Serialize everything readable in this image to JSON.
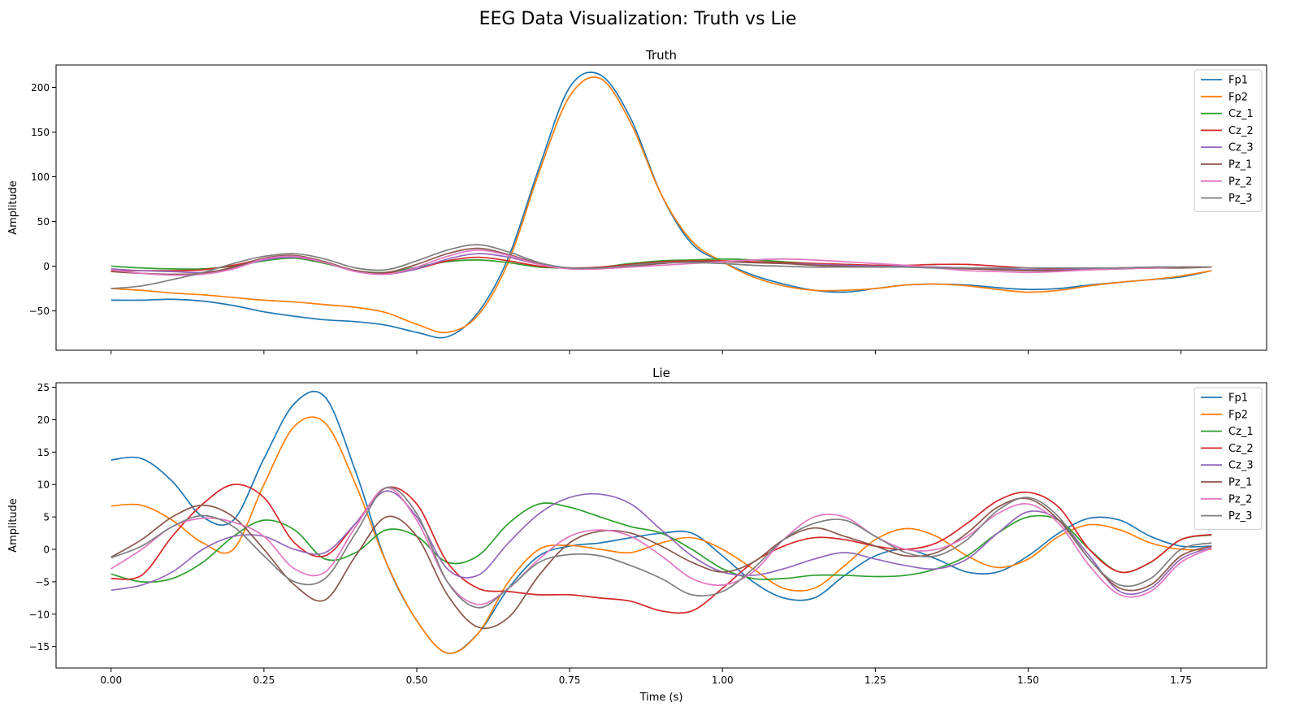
{
  "figure": {
    "title": "EEG Data Visualization: Truth vs Lie"
  },
  "colors": {
    "Fp1": "#1f77b4",
    "Fp2": "#ff7f0e",
    "Cz_1": "#2ca02c",
    "Cz_2": "#d62728",
    "Cz_3": "#9467bd",
    "Pz_1": "#8c564b",
    "Pz_2": "#e377c2",
    "Pz_3": "#7f7f7f"
  },
  "chart_data": [
    {
      "type": "line",
      "title": "Truth",
      "xlabel": "",
      "ylabel": "Amplitude",
      "xlim": [
        -0.09,
        1.89
      ],
      "ylim": [
        -94,
        225
      ],
      "xticks": [
        0.0,
        0.25,
        0.5,
        0.75,
        1.0,
        1.25,
        1.5,
        1.75
      ],
      "xtick_labels": [],
      "yticks": [
        -50,
        0,
        50,
        100,
        150,
        200
      ],
      "ytick_labels": [
        "−50",
        "0",
        "50",
        "100",
        "150",
        "200"
      ],
      "legend": "top-right",
      "grid": false,
      "x": [
        0.0,
        0.05,
        0.1,
        0.15,
        0.2,
        0.25,
        0.3,
        0.35,
        0.4,
        0.45,
        0.5,
        0.55,
        0.6,
        0.65,
        0.7,
        0.75,
        0.8,
        0.85,
        0.9,
        0.95,
        1.0,
        1.05,
        1.1,
        1.15,
        1.2,
        1.25,
        1.3,
        1.35,
        1.4,
        1.45,
        1.5,
        1.55,
        1.6,
        1.65,
        1.7,
        1.75,
        1.8
      ],
      "series": [
        {
          "name": "Fp1",
          "values": [
            -38,
            -38,
            -37,
            -39,
            -44,
            -51,
            -56,
            -60,
            -62,
            -66,
            -74,
            -79,
            -52,
            10,
            110,
            200,
            214,
            165,
            80,
            25,
            5,
            -10,
            -20,
            -27,
            -29,
            -25,
            -21,
            -20,
            -21,
            -24,
            -26,
            -25,
            -21,
            -18,
            -15,
            -12,
            -5
          ]
        },
        {
          "name": "Fp2",
          "values": [
            -25,
            -27,
            -30,
            -32,
            -35,
            -38,
            -40,
            -43,
            -46,
            -52,
            -65,
            -74,
            -55,
            5,
            105,
            190,
            210,
            160,
            80,
            28,
            5,
            -12,
            -22,
            -27,
            -27,
            -25,
            -21,
            -20,
            -22,
            -26,
            -29,
            -27,
            -22,
            -18,
            -15,
            -11,
            -5
          ]
        },
        {
          "name": "Cz_1",
          "values": [
            0,
            -2,
            -3,
            -3,
            0,
            6,
            9,
            3,
            -5,
            -7,
            -1,
            5,
            7,
            4,
            -1,
            -2,
            -1,
            3,
            6,
            7,
            8,
            7,
            5,
            3,
            2,
            1,
            0,
            -1,
            -2,
            -3,
            -4,
            -4,
            -3,
            -2,
            -2,
            -1,
            -1
          ]
        },
        {
          "name": "Cz_2",
          "values": [
            -5,
            -5,
            -5,
            -4,
            1,
            8,
            10,
            4,
            -5,
            -8,
            -3,
            6,
            10,
            6,
            0,
            -2,
            -1,
            2,
            5,
            6,
            6,
            5,
            4,
            3,
            2,
            1,
            1,
            2,
            2,
            0,
            -2,
            -3,
            -3,
            -2,
            -2,
            -1,
            -1
          ]
        },
        {
          "name": "Cz_3",
          "values": [
            -3,
            -5,
            -6,
            -7,
            -2,
            7,
            10,
            4,
            -6,
            -9,
            -3,
            8,
            14,
            10,
            2,
            -2,
            -2,
            0,
            3,
            5,
            5,
            4,
            3,
            2,
            1,
            0,
            0,
            -1,
            -2,
            -3,
            -4,
            -4,
            -3,
            -2,
            -1,
            -1,
            -1
          ]
        },
        {
          "name": "Pz_1",
          "values": [
            -6,
            -8,
            -9,
            -8,
            -1,
            9,
            12,
            5,
            -5,
            -7,
            2,
            14,
            20,
            13,
            3,
            -2,
            -2,
            0,
            3,
            5,
            5,
            4,
            3,
            1,
            0,
            -1,
            -1,
            -2,
            -3,
            -4,
            -5,
            -5,
            -4,
            -3,
            -2,
            -2,
            -1
          ]
        },
        {
          "name": "Pz_2",
          "values": [
            -4,
            -8,
            -10,
            -9,
            -3,
            8,
            11,
            4,
            -6,
            -9,
            -1,
            11,
            18,
            12,
            2,
            -3,
            -3,
            -1,
            1,
            3,
            5,
            7,
            8,
            7,
            5,
            3,
            1,
            -2,
            -5,
            -6,
            -7,
            -6,
            -4,
            -3,
            -2,
            -1,
            -1
          ]
        },
        {
          "name": "Pz_3",
          "values": [
            -25,
            -22,
            -15,
            -7,
            3,
            11,
            14,
            8,
            -2,
            -4,
            6,
            18,
            24,
            16,
            4,
            -2,
            -2,
            1,
            4,
            4,
            3,
            1,
            0,
            -1,
            -1,
            -1,
            -1,
            -2,
            -2,
            -2,
            -2,
            -2,
            -2,
            -2,
            -1,
            -1,
            -1
          ]
        }
      ]
    },
    {
      "type": "line",
      "title": "Lie",
      "xlabel": "Time (s)",
      "ylabel": "Amplitude",
      "xlim": [
        -0.09,
        1.89
      ],
      "ylim": [
        -18.3,
        25.7
      ],
      "xticks": [
        0.0,
        0.25,
        0.5,
        0.75,
        1.0,
        1.25,
        1.5,
        1.75
      ],
      "xtick_labels": [
        "0.00",
        "0.25",
        "0.50",
        "0.75",
        "1.00",
        "1.25",
        "1.50",
        "1.75"
      ],
      "yticks": [
        -15,
        -10,
        -5,
        0,
        5,
        10,
        15,
        20,
        25
      ],
      "ytick_labels": [
        "−15",
        "−10",
        "−5",
        "0",
        "5",
        "10",
        "15",
        "20",
        "25"
      ],
      "legend": "top-right",
      "grid": false,
      "x": [
        0.0,
        0.05,
        0.1,
        0.15,
        0.2,
        0.25,
        0.3,
        0.35,
        0.4,
        0.45,
        0.5,
        0.55,
        0.6,
        0.65,
        0.7,
        0.75,
        0.8,
        0.85,
        0.9,
        0.95,
        1.0,
        1.05,
        1.1,
        1.15,
        1.2,
        1.25,
        1.3,
        1.35,
        1.4,
        1.45,
        1.5,
        1.55,
        1.6,
        1.65,
        1.7,
        1.75,
        1.8
      ],
      "series": [
        {
          "name": "Fp1",
          "values": [
            13.8,
            14.0,
            10.5,
            5.0,
            4.5,
            14.0,
            22.5,
            23.5,
            12.0,
            -2.0,
            -11.0,
            -16.0,
            -13.0,
            -6.0,
            -1.0,
            0.5,
            1.0,
            1.8,
            2.5,
            2.5,
            -1.0,
            -5.0,
            -7.5,
            -7.5,
            -4.0,
            -1.0,
            0.0,
            -1.5,
            -3.5,
            -3.5,
            -1.0,
            2.5,
            4.8,
            4.5,
            2.0,
            0.5,
            0.5
          ]
        },
        {
          "name": "Fp2",
          "values": [
            6.7,
            6.8,
            4.5,
            1.0,
            0.0,
            10.0,
            19.0,
            19.5,
            10.0,
            -2.0,
            -11.0,
            -16.0,
            -13.0,
            -5.0,
            0.0,
            0.6,
            0.0,
            -0.5,
            1.0,
            1.8,
            0.0,
            -3.0,
            -6.0,
            -6.0,
            -2.5,
            1.5,
            3.2,
            2.0,
            -1.0,
            -2.8,
            -1.5,
            2.0,
            3.8,
            3.0,
            1.0,
            0.0,
            0.0
          ]
        },
        {
          "name": "Cz_1",
          "values": [
            -3.8,
            -5.0,
            -4.5,
            -2.0,
            2.0,
            4.5,
            3.0,
            -1.5,
            -0.5,
            3.0,
            2.0,
            -2.0,
            -1.0,
            4.0,
            7.0,
            6.5,
            5.0,
            3.5,
            2.5,
            0.0,
            -3.0,
            -4.5,
            -4.5,
            -4.0,
            -4.0,
            -4.2,
            -4.0,
            -3.0,
            -1.0,
            2.5,
            5.0,
            4.5,
            0.0,
            -3.5,
            -2.0,
            1.5,
            2.2
          ]
        },
        {
          "name": "Cz_2",
          "values": [
            -4.5,
            -4.0,
            2.0,
            7.0,
            10.0,
            8.0,
            1.0,
            -1.0,
            4.0,
            9.5,
            7.0,
            -2.0,
            -6.0,
            -6.5,
            -7.0,
            -7.0,
            -7.5,
            -8.0,
            -9.5,
            -9.5,
            -6.0,
            -2.0,
            0.5,
            1.8,
            1.5,
            0.5,
            0.0,
            1.0,
            4.0,
            7.5,
            8.8,
            6.5,
            0.0,
            -3.5,
            -2.0,
            1.5,
            2.3
          ]
        },
        {
          "name": "Cz_3",
          "values": [
            -6.3,
            -5.5,
            -3.5,
            0.0,
            2.0,
            2.0,
            0.0,
            -0.5,
            4.0,
            9.0,
            5.0,
            -3.0,
            -4.0,
            1.0,
            5.5,
            8.0,
            8.5,
            7.0,
            3.0,
            -1.0,
            -3.5,
            -4.0,
            -3.0,
            -1.5,
            -0.5,
            -1.5,
            -2.5,
            -3.0,
            -1.5,
            2.5,
            5.8,
            4.5,
            -1.0,
            -6.5,
            -6.0,
            -1.5,
            0.3
          ]
        },
        {
          "name": "Pz_1",
          "values": [
            -1.2,
            1.5,
            5.0,
            6.8,
            5.0,
            0.0,
            -5.5,
            -7.8,
            -1.0,
            5.0,
            2.0,
            -7.0,
            -12.0,
            -10.5,
            -4.0,
            1.0,
            2.8,
            2.5,
            0.5,
            -2.0,
            -3.5,
            -2.0,
            1.5,
            3.3,
            2.0,
            0.5,
            -1.0,
            -0.5,
            2.5,
            6.5,
            7.8,
            4.5,
            -1.5,
            -6.0,
            -5.5,
            -1.0,
            0.5
          ]
        },
        {
          "name": "Pz_2",
          "values": [
            -3.0,
            0.0,
            3.5,
            4.8,
            4.2,
            2.0,
            -3.0,
            -3.5,
            3.5,
            9.5,
            4.5,
            -5.0,
            -8.5,
            -6.0,
            -1.5,
            2.0,
            3.0,
            2.0,
            -1.0,
            -4.5,
            -5.5,
            -3.5,
            1.5,
            5.0,
            5.0,
            2.0,
            0.0,
            0.0,
            2.0,
            5.5,
            7.0,
            4.0,
            -2.5,
            -7.0,
            -6.5,
            -2.0,
            0.2
          ]
        },
        {
          "name": "Pz_3",
          "values": [
            -1.3,
            0.5,
            3.5,
            5.2,
            3.5,
            -1.0,
            -5.0,
            -4.5,
            2.5,
            9.5,
            5.5,
            -5.0,
            -9.0,
            -6.0,
            -2.0,
            -0.8,
            -1.0,
            -2.5,
            -4.5,
            -7.0,
            -6.5,
            -3.0,
            1.5,
            4.0,
            4.5,
            2.0,
            -0.5,
            -1.0,
            1.5,
            6.0,
            8.0,
            5.0,
            -1.5,
            -5.5,
            -4.5,
            0.0,
            1.0
          ]
        }
      ]
    }
  ]
}
